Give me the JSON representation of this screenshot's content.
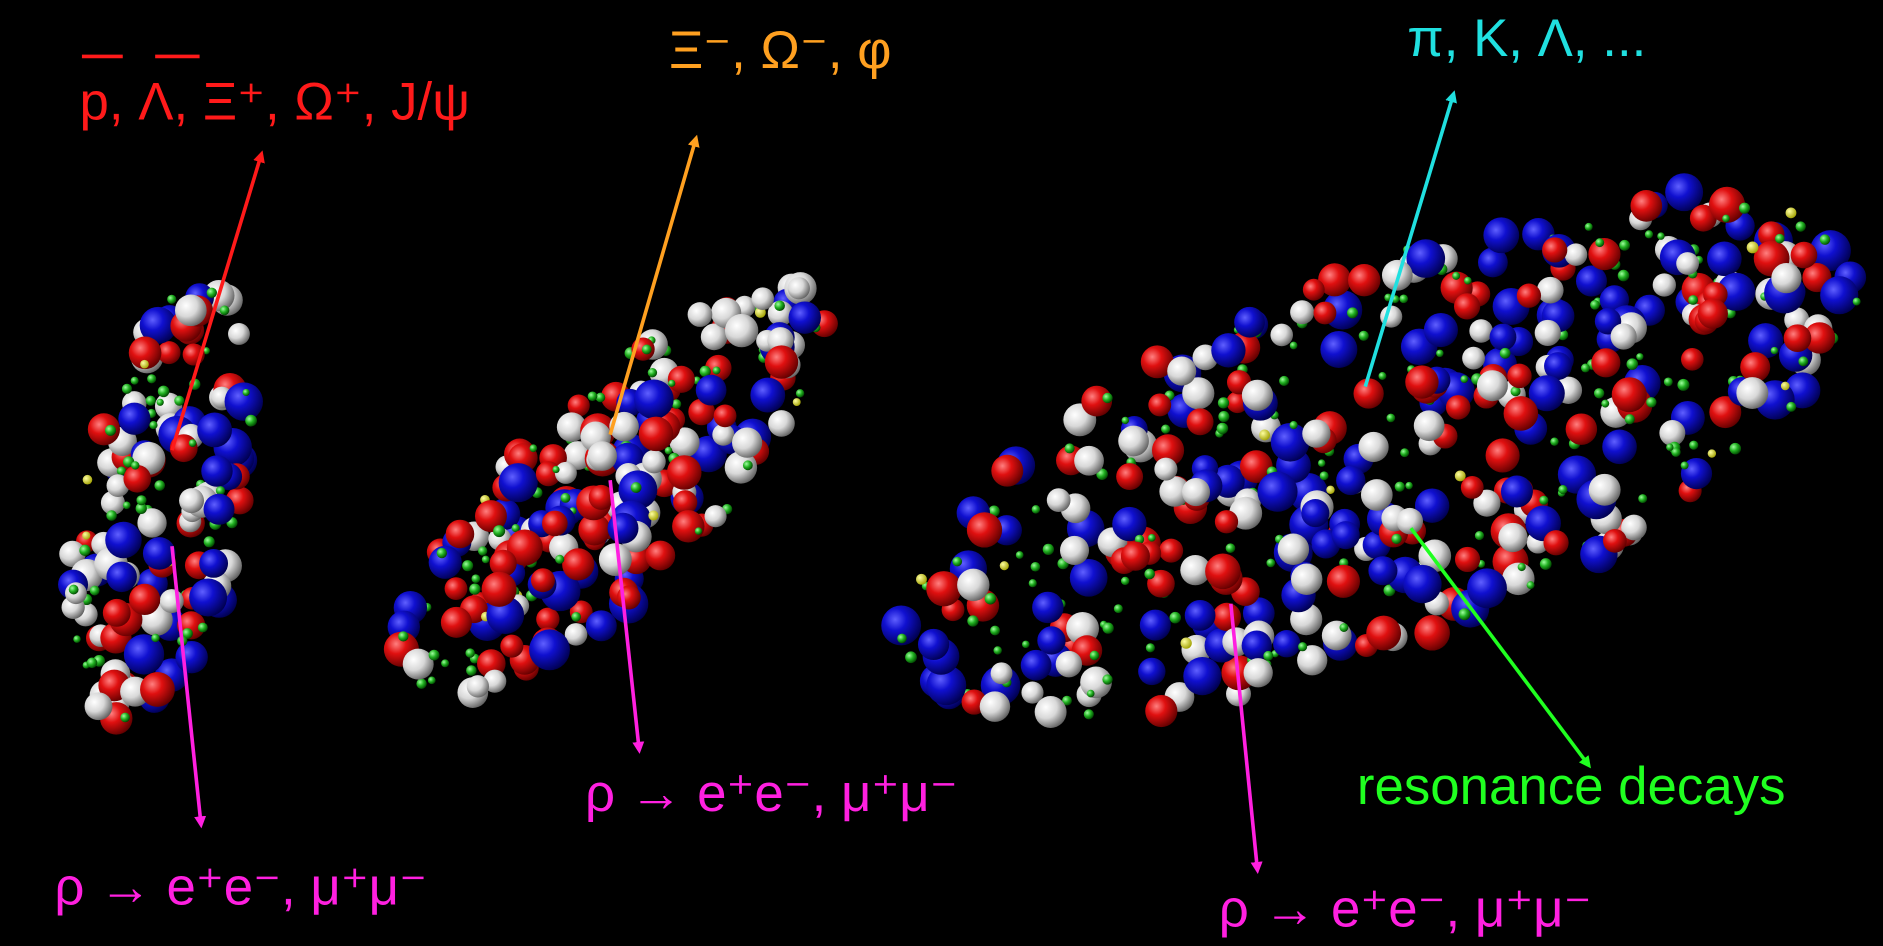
{
  "labels": {
    "baryons": "p, Λ, Ξ⁺, Ω⁺, J/ψ",
    "strange": "Ξ⁻, Ω⁻, φ",
    "light": "π, K, Λ, ...",
    "resonance": "resonance decays",
    "dileptons": [
      "ρ → e⁺e⁻, μ⁺μ⁻",
      "ρ → e⁺e⁻, μ⁺μ⁻",
      "ρ → e⁺e⁻, μ⁺μ⁻"
    ]
  }
}
